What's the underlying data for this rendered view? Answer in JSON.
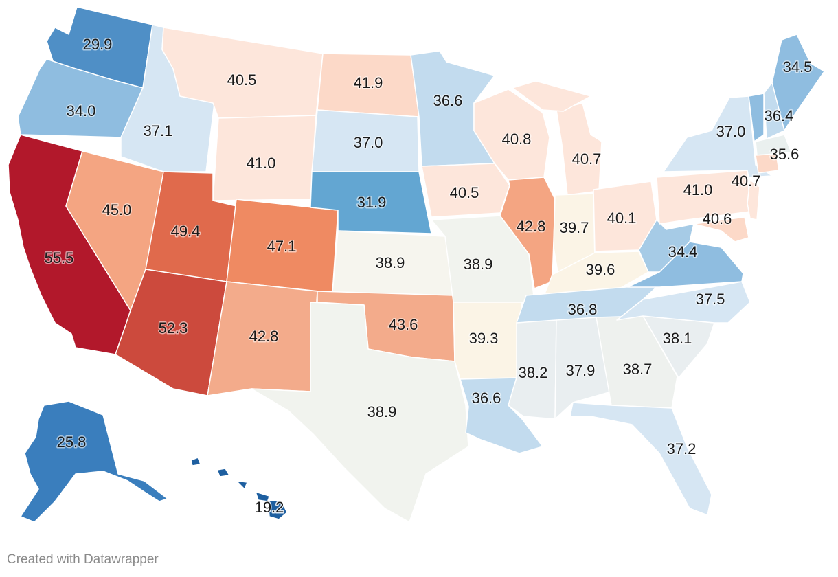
{
  "credit": "Created with Datawrapper",
  "colors": {
    "c19": "#1e5fa0",
    "c25": "#3a7ebd",
    "c29": "#4f8fc6",
    "c31": "#63a6d2",
    "c34": "#8fbde0",
    "c35": "#a6cbe6",
    "c36": "#c2dbee",
    "c37": "#d6e6f3",
    "c38": "#e9eef0",
    "c38b": "#eef1ee",
    "c39": "#f6f5ee",
    "c39b": "#fbf4e6",
    "c40": "#fde6db",
    "c41": "#fcd9c8",
    "c42": "#f4a582",
    "c43": "#f3ab8b",
    "c47": "#ef8a62",
    "c49": "#e06a4c",
    "c52": "#cc4a3d",
    "c55": "#b2182b",
    "c35b": "#eaf0ef",
    "c40b": "#fddcc9"
  },
  "states": {
    "WA": {
      "value": "29.9"
    },
    "OR": {
      "value": "34.0"
    },
    "CA": {
      "value": "55.5"
    },
    "NV": {
      "value": "45.0"
    },
    "ID": {
      "value": "37.1"
    },
    "MT": {
      "value": "40.5"
    },
    "WY": {
      "value": "41.0"
    },
    "UT": {
      "value": "49.4"
    },
    "AZ": {
      "value": "52.3"
    },
    "CO": {
      "value": "47.1"
    },
    "NM": {
      "value": "42.8"
    },
    "ND": {
      "value": "41.9"
    },
    "SD": {
      "value": "37.0"
    },
    "NE": {
      "value": "31.9"
    },
    "KS": {
      "value": "38.9"
    },
    "OK": {
      "value": "43.6"
    },
    "TX": {
      "value": "38.9"
    },
    "MN": {
      "value": "36.6"
    },
    "IA": {
      "value": "40.5"
    },
    "MO": {
      "value": "38.9"
    },
    "AR": {
      "value": "39.3"
    },
    "LA": {
      "value": "36.6"
    },
    "WI": {
      "value": "40.8"
    },
    "IL": {
      "value": "42.8"
    },
    "MI": {
      "value": "40.7"
    },
    "IN": {
      "value": "39.7"
    },
    "OH": {
      "value": "40.1"
    },
    "KY": {
      "value": "39.6"
    },
    "TN": {
      "value": "36.8"
    },
    "MS": {
      "value": "38.2"
    },
    "AL": {
      "value": "37.9"
    },
    "GA": {
      "value": "38.7"
    },
    "FL": {
      "value": "37.2"
    },
    "SC": {
      "value": "38.1"
    },
    "NC": {
      "value": "37.5"
    },
    "VA": {
      "value": "34.4"
    },
    "WV": {
      "value": "34.4b"
    },
    "PA": {
      "value": "41.0"
    },
    "NY": {
      "value": "37.0"
    },
    "NJ": {
      "value": "40.7"
    },
    "MD": {
      "value": "40.6"
    },
    "VT": {
      "value": "36.4"
    },
    "ME": {
      "value": "34.5"
    },
    "MA": {
      "value": "35.6"
    },
    "AK": {
      "value": "25.8"
    },
    "HI": {
      "value": "19.2"
    }
  },
  "labels": {
    "WA": "29.9",
    "OR": "34.0",
    "CA": "55.5",
    "NV": "45.0",
    "ID": "37.1",
    "MT": "40.5",
    "WY": "41.0",
    "UT": "49.4",
    "AZ": "52.3",
    "CO": "47.1",
    "NM": "42.8",
    "ND": "41.9",
    "SD": "37.0",
    "NE": "31.9",
    "KS": "38.9",
    "OK": "43.6",
    "TX": "38.9",
    "MN": "36.6",
    "IA": "40.5",
    "MO": "38.9",
    "AR": "39.3",
    "LA": "36.6",
    "WI": "40.8",
    "IL": "42.8",
    "MI": "40.7",
    "IN": "39.7",
    "OH": "40.1",
    "KY": "39.6",
    "TN": "36.8",
    "MS": "38.2",
    "AL": "37.9",
    "GA": "38.7",
    "FL": "37.2",
    "SC": "38.1",
    "NC": "37.5",
    "VA": "34.4",
    "PA": "41.0",
    "NY": "37.0",
    "NJ": "40.7",
    "MD": "40.6",
    "VT": "36.4",
    "ME": "34.5",
    "MA": "35.6",
    "AK": "25.8",
    "HI": "19.2"
  }
}
